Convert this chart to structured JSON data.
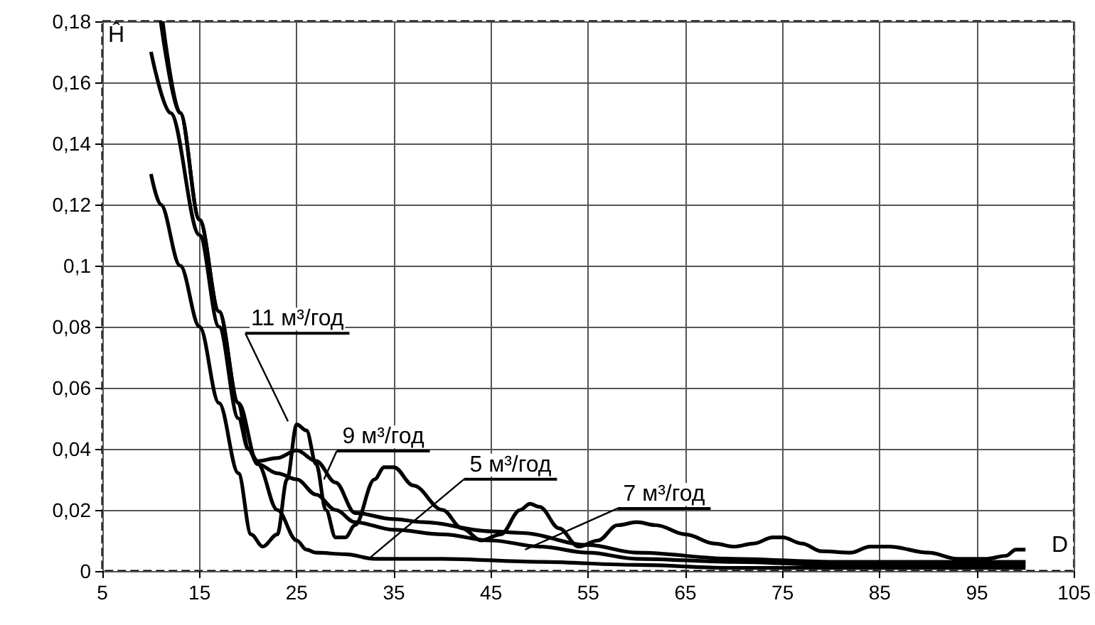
{
  "chart_data": {
    "type": "line",
    "xlabel": "D",
    "ylabel": "Ĥ",
    "grid": true,
    "marker": "none",
    "xlim": [
      5,
      105
    ],
    "xticks": [
      5,
      15,
      25,
      35,
      45,
      55,
      65,
      75,
      85,
      95,
      105
    ],
    "ylim": [
      0,
      0.18
    ],
    "yticks": [
      {
        "value": 0,
        "label": "0"
      },
      {
        "value": 0.02,
        "label": "0,02"
      },
      {
        "value": 0.04,
        "label": "0,04"
      },
      {
        "value": 0.06,
        "label": "0,06"
      },
      {
        "value": 0.08,
        "label": "0,08"
      },
      {
        "value": 0.1,
        "label": "0,1"
      },
      {
        "value": 0.12,
        "label": "0,12"
      },
      {
        "value": 0.14,
        "label": "0,14"
      },
      {
        "value": 0.16,
        "label": "0,16"
      },
      {
        "value": 0.18,
        "label": "0,18"
      }
    ],
    "series": [
      {
        "color": "#000000",
        "x": [
          10,
          11,
          13,
          15,
          17,
          19,
          20.3,
          21.5,
          23,
          24,
          25,
          26,
          27,
          28,
          29,
          30,
          31,
          33,
          34,
          35,
          37,
          40,
          42,
          44,
          46,
          48,
          49,
          50,
          52,
          54,
          56,
          58,
          60,
          62,
          65,
          68,
          70,
          72,
          74,
          75,
          77,
          79,
          82,
          84,
          86,
          90,
          93,
          96,
          98,
          99,
          100
        ],
        "values": [
          0.13,
          0.12,
          0.1,
          0.08,
          0.055,
          0.032,
          0.012,
          0.008,
          0.012,
          0.03,
          0.048,
          0.046,
          0.035,
          0.02,
          0.011,
          0.011,
          0.015,
          0.03,
          0.034,
          0.034,
          0.028,
          0.02,
          0.014,
          0.01,
          0.012,
          0.02,
          0.022,
          0.021,
          0.014,
          0.008,
          0.01,
          0.015,
          0.016,
          0.015,
          0.012,
          0.009,
          0.008,
          0.009,
          0.011,
          0.011,
          0.009,
          0.0065,
          0.006,
          0.008,
          0.008,
          0.006,
          0.004,
          0.004,
          0.005,
          0.007,
          0.007
        ]
      },
      {
        "color": "#000000",
        "x": [
          10,
          12,
          15,
          17,
          19,
          20,
          21,
          23,
          25,
          27,
          29,
          31,
          35,
          38,
          45,
          48,
          55,
          60,
          70,
          80,
          90,
          100
        ],
        "values": [
          0.17,
          0.15,
          0.11,
          0.08,
          0.05,
          0.04,
          0.036,
          0.037,
          0.0395,
          0.036,
          0.029,
          0.019,
          0.017,
          0.016,
          0.013,
          0.0125,
          0.0085,
          0.006,
          0.004,
          0.003,
          0.003,
          0.003
        ]
      },
      {
        "color": "#000000",
        "x": [
          11,
          13,
          15,
          17,
          19,
          20,
          21,
          23,
          25,
          27,
          29,
          31,
          35,
          40,
          45,
          50,
          55,
          60,
          70,
          80,
          90,
          100
        ],
        "values": [
          0.18,
          0.15,
          0.115,
          0.085,
          0.055,
          0.04,
          0.035,
          0.032,
          0.03,
          0.025,
          0.02,
          0.016,
          0.0135,
          0.012,
          0.01,
          0.008,
          0.006,
          0.004,
          0.003,
          0.002,
          0.002,
          0.002
        ]
      },
      {
        "color": "#000000",
        "x": [
          11.2,
          13,
          15,
          17,
          19,
          21,
          23,
          25,
          26,
          27,
          30,
          33,
          40,
          50,
          60,
          70,
          80,
          90,
          100
        ],
        "values": [
          0.18,
          0.15,
          0.115,
          0.085,
          0.055,
          0.035,
          0.02,
          0.01,
          0.007,
          0.006,
          0.0055,
          0.004,
          0.004,
          0.003,
          0.002,
          0.001,
          0.001,
          0.001,
          0.001
        ]
      }
    ],
    "annotations": [
      {
        "text": "11 м³/год",
        "x": 24.1,
        "y": 0.049
      },
      {
        "text": "9 м³/год",
        "x": 27.8,
        "y": 0.03
      },
      {
        "text": "5 м³/год",
        "x": 32.4,
        "y": 0.004
      },
      {
        "text": "7 м³/год",
        "x": 48.5,
        "y": 0.007
      }
    ]
  }
}
